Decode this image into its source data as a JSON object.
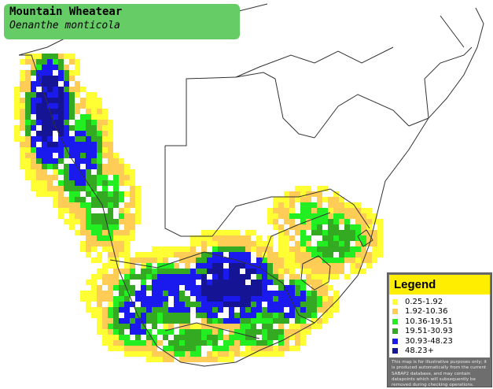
{
  "title": {
    "common_name": "Mountain Wheatear",
    "scientific_name": "Oenanthe monticola"
  },
  "legend": {
    "heading": "Legend",
    "items": [
      {
        "label": "0.25-1.92",
        "color": "#ffff33"
      },
      {
        "label": "1.92-10.36",
        "color": "#ffcc55"
      },
      {
        "label": "10.36-19.51",
        "color": "#22ee22"
      },
      {
        "label": "19.51-30.93",
        "color": "#33aa22"
      },
      {
        "label": "30.93-48.23",
        "color": "#1a1aee"
      },
      {
        "label": "48.23+",
        "color": "#141494"
      }
    ],
    "note": "This map is for illustrative purposes only; it is produced automatically from the current SABAP2 database, and may contain datapoints which will subsequently be removed during checking operations."
  },
  "map": {
    "border_color": "#333333",
    "land_color": "#ffffff"
  }
}
